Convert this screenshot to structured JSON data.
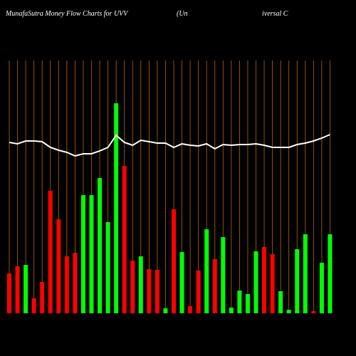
{
  "chart_data": {
    "type": "bar",
    "title": "MunafaSutra  Money Flow  Charts for UVV",
    "subtitle_left": "(Un",
    "subtitle_right": "iversal C",
    "categories": [
      null,
      null,
      null,
      null,
      null,
      null,
      null,
      null,
      null,
      null,
      null,
      null,
      null,
      null,
      null,
      null,
      null,
      null,
      null,
      null,
      null,
      null,
      null,
      null,
      null,
      null,
      null,
      null,
      null,
      null,
      null,
      null,
      null,
      null,
      null,
      null,
      null,
      null,
      null,
      null
    ],
    "values": [
      56,
      66,
      68,
      21,
      44,
      172,
      132,
      80,
      85,
      166,
      166,
      190,
      128,
      295,
      207,
      74,
      80,
      62,
      61,
      7,
      146,
      86,
      10,
      60,
      118,
      76,
      107,
      8,
      32,
      27,
      87,
      93,
      83,
      31,
      5,
      90,
      111,
      3,
      71,
      111
    ],
    "colors": [
      "#ff0000",
      "#ff0000",
      "#00ff00",
      "#ff0000",
      "#ff0000",
      "#ff0000",
      "#ff0000",
      "#ff0000",
      "#ff0000",
      "#00ff00",
      "#00ff00",
      "#00ff00",
      "#00ff00",
      "#00ff00",
      "#ff0000",
      "#ff0000",
      "#00ff00",
      "#ff0000",
      "#ff0000",
      "#00ff00",
      "#ff0000",
      "#00ff00",
      "#ff0000",
      "#ff0000",
      "#00ff00",
      "#ff0000",
      "#00ff00",
      "#00ff00",
      "#00ff00",
      "#00ff00",
      "#00ff00",
      "#ff0000",
      "#ff0000",
      "#00ff00",
      "#00ff00",
      "#00ff00",
      "#00ff00",
      "#ff0000",
      "#00ff00",
      "#00ff00"
    ],
    "line_values": [
      240,
      238,
      242,
      242,
      241,
      233,
      229,
      226,
      221,
      224,
      224,
      228,
      233,
      250,
      240,
      236,
      243,
      241,
      239,
      239,
      233,
      238,
      236,
      235,
      238,
      231,
      237,
      236,
      237,
      237,
      238,
      236,
      233,
      233,
      233,
      237,
      239,
      242,
      246,
      251
    ],
    "line_color": "#ffffff",
    "grid_color": "#b8650a",
    "ylim": [
      0,
      355
    ]
  }
}
